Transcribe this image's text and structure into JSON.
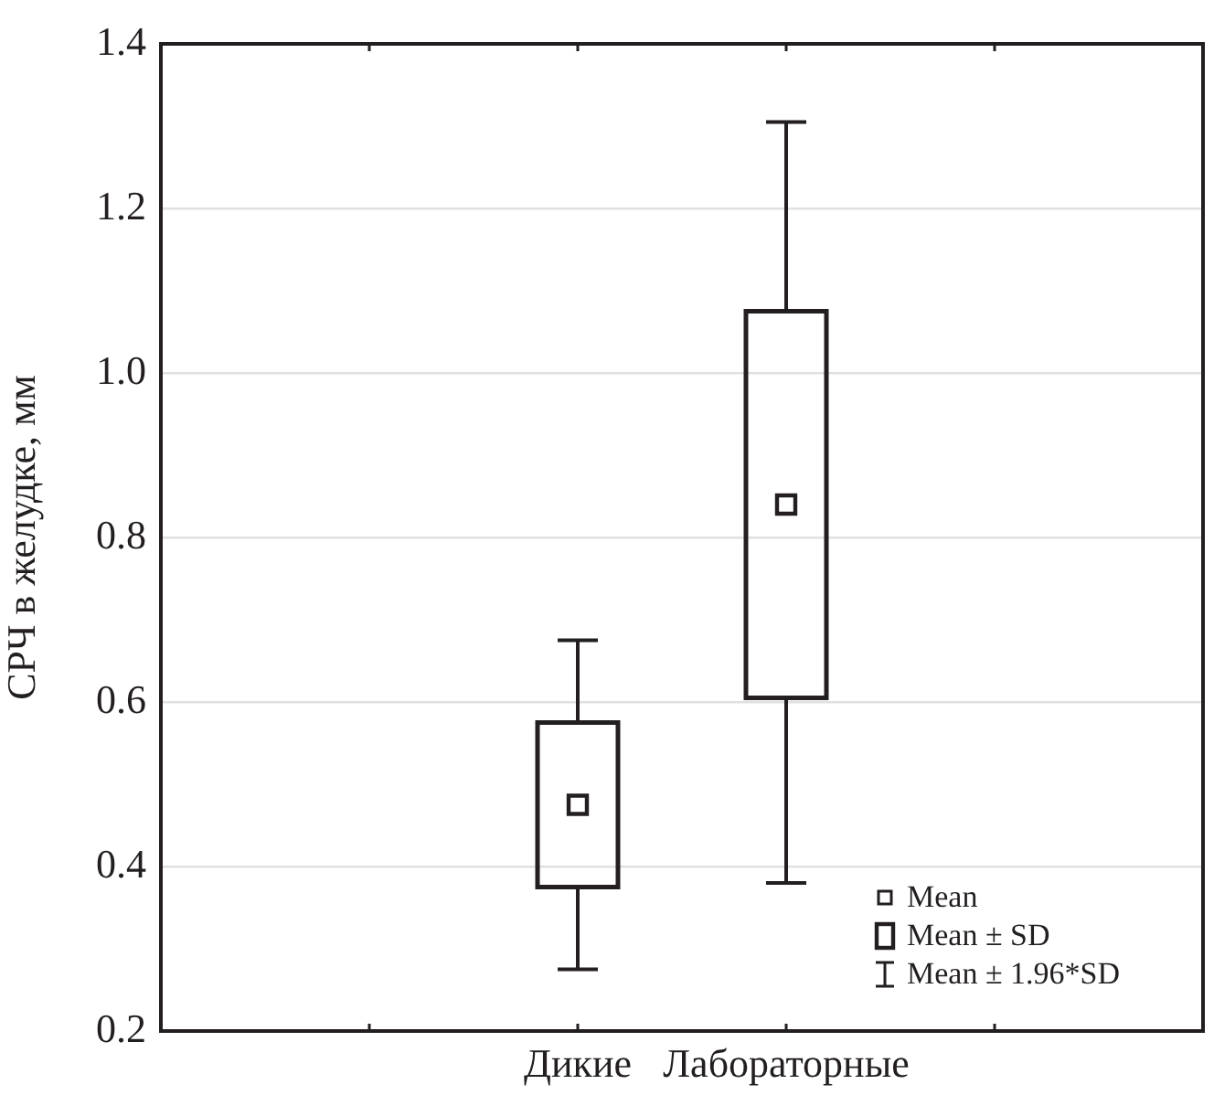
{
  "chart_data": {
    "type": "box",
    "ylabel": "СРЧ в желудке, мм",
    "categories": [
      null,
      null,
      "Дикие",
      "Лабораторные",
      null,
      null
    ],
    "boxes": [
      null,
      null,
      {
        "low": 0.275,
        "q1": 0.375,
        "mean": 0.475,
        "q3": 0.575,
        "high": 0.675
      },
      {
        "low": 0.38,
        "q1": 0.605,
        "mean": 0.84,
        "q3": 1.075,
        "high": 1.305
      },
      null,
      null
    ],
    "color": "#231f20",
    "ylim": [
      0.2,
      1.4
    ],
    "yticks": [
      {
        "value": 0.2,
        "label": "0.2"
      },
      {
        "value": 0.4,
        "label": "0.4"
      },
      {
        "value": 0.6,
        "label": "0.6"
      },
      {
        "value": 0.8,
        "label": "0.8"
      },
      {
        "value": 1.0,
        "label": "1.0"
      },
      {
        "value": 1.2,
        "label": "1.2"
      },
      {
        "value": 1.4,
        "label": "1.4"
      }
    ],
    "grid": "y",
    "annotations": [
      "Mean",
      "Mean ± SD",
      "Mean ± 1.96*SD"
    ]
  }
}
